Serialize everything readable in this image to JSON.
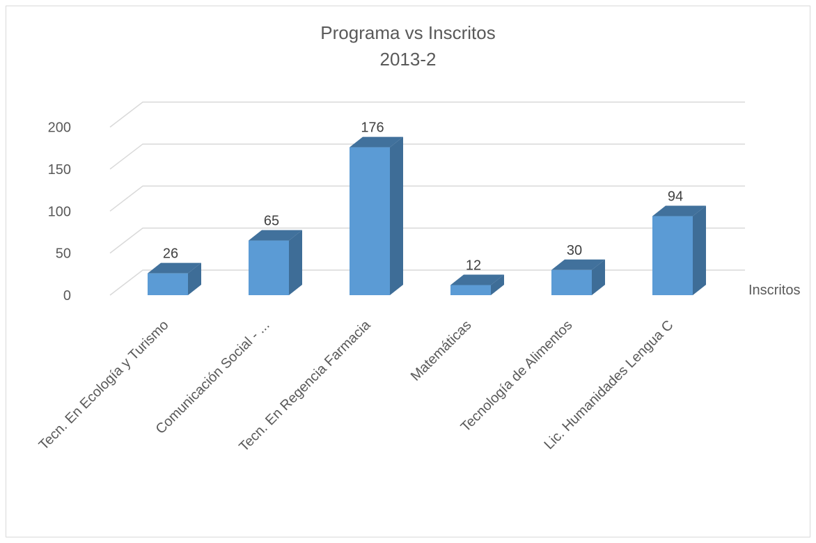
{
  "chart_data": {
    "type": "bar",
    "title": "Programa vs Inscritos",
    "subtitle": "2013-2",
    "categories": [
      "Tecn. En Ecología y Turismo",
      "Comunicación Social - ...",
      "Tecn. En Regencia Farmacia",
      "Matemáticas",
      "Tecnología de Alimentos",
      "Lic. Humanidades Lengua C"
    ],
    "series": [
      {
        "name": "Inscritos",
        "values": [
          26,
          65,
          176,
          12,
          30,
          94
        ]
      }
    ],
    "ylim": [
      0,
      200
    ],
    "yticks": [
      "0",
      "50",
      "100",
      "150",
      "200"
    ],
    "data_labels": [
      "26",
      "65",
      "176",
      "12",
      "30",
      "94"
    ],
    "grid": true,
    "legend": "right",
    "colors": {
      "bar_front": "#5b9bd5",
      "bar_side": "#3e6d97",
      "bar_top": "#41719c",
      "grid": "#d9d9d9",
      "text": "#595959"
    }
  }
}
